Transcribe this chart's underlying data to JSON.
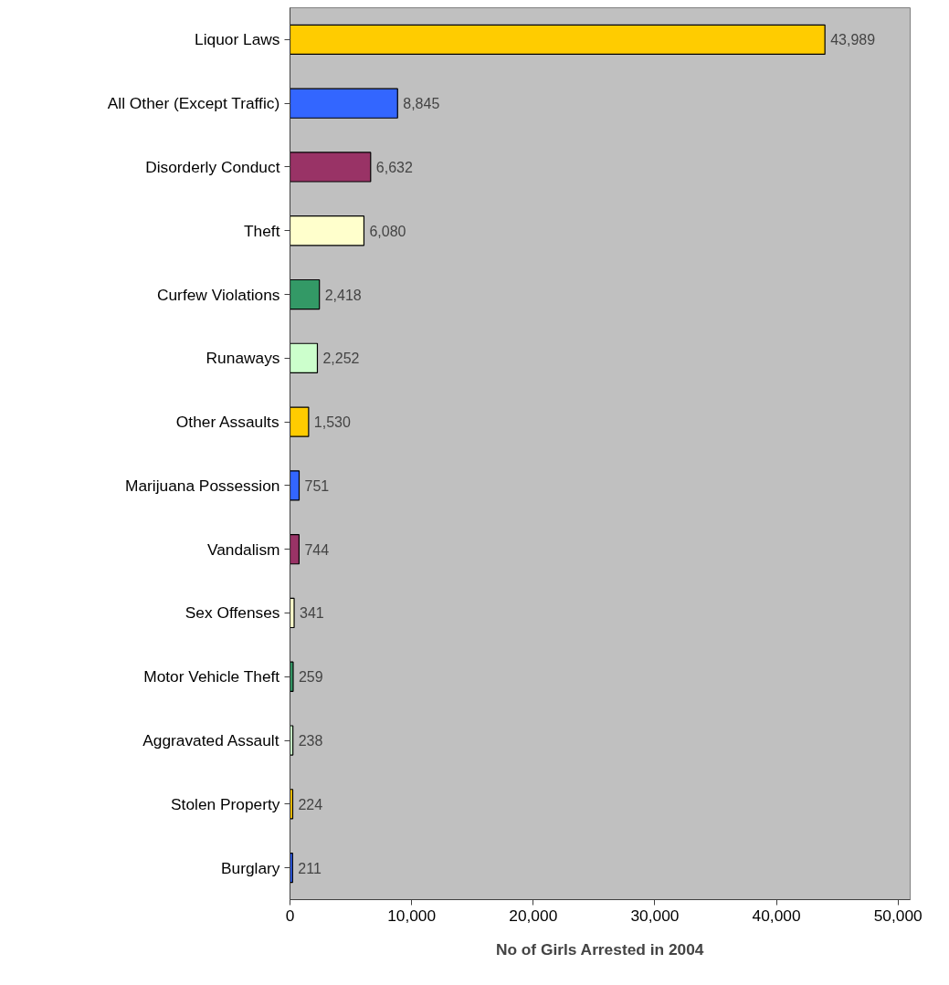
{
  "chart_data": {
    "type": "bar",
    "orientation": "horizontal",
    "xlabel": "No of Girls Arrested in 2004",
    "categories": [
      "Liquor Laws",
      "All Other (Except Traffic)",
      "Disorderly Conduct",
      "Theft",
      "Curfew Violations",
      "Runaways",
      "Other Assaults",
      "Marijuana Possession",
      "Vandalism",
      "Sex Offenses",
      "Motor Vehicle Theft",
      "Aggravated Assault",
      "Stolen Property",
      "Burglary"
    ],
    "values": [
      43989,
      8845,
      6632,
      6080,
      2418,
      2252,
      1530,
      751,
      744,
      341,
      259,
      238,
      224,
      211
    ],
    "colors": [
      "#ffcc00",
      "#3366ff",
      "#993366",
      "#ffffcc",
      "#339966",
      "#ccffcc",
      "#ffcc00",
      "#3366ff",
      "#993366",
      "#ffffcc",
      "#339966",
      "#ccffcc",
      "#ffcc00",
      "#3366ff"
    ],
    "xlim": [
      0,
      51000
    ],
    "xticks": [
      {
        "value": 0,
        "label": "0"
      },
      {
        "value": 10000,
        "label": "10,000"
      },
      {
        "value": 20000,
        "label": "20,000"
      },
      {
        "value": 30000,
        "label": "30,000"
      },
      {
        "value": 40000,
        "label": "40,000"
      },
      {
        "value": 50000,
        "label": "50,000"
      }
    ],
    "value_labels": [
      "43,989",
      "8,845",
      "6,632",
      "6,080",
      "2,418",
      "2,252",
      "1,530",
      "751",
      "744",
      "341",
      "259",
      "238",
      "224",
      "211"
    ],
    "grid": false
  }
}
